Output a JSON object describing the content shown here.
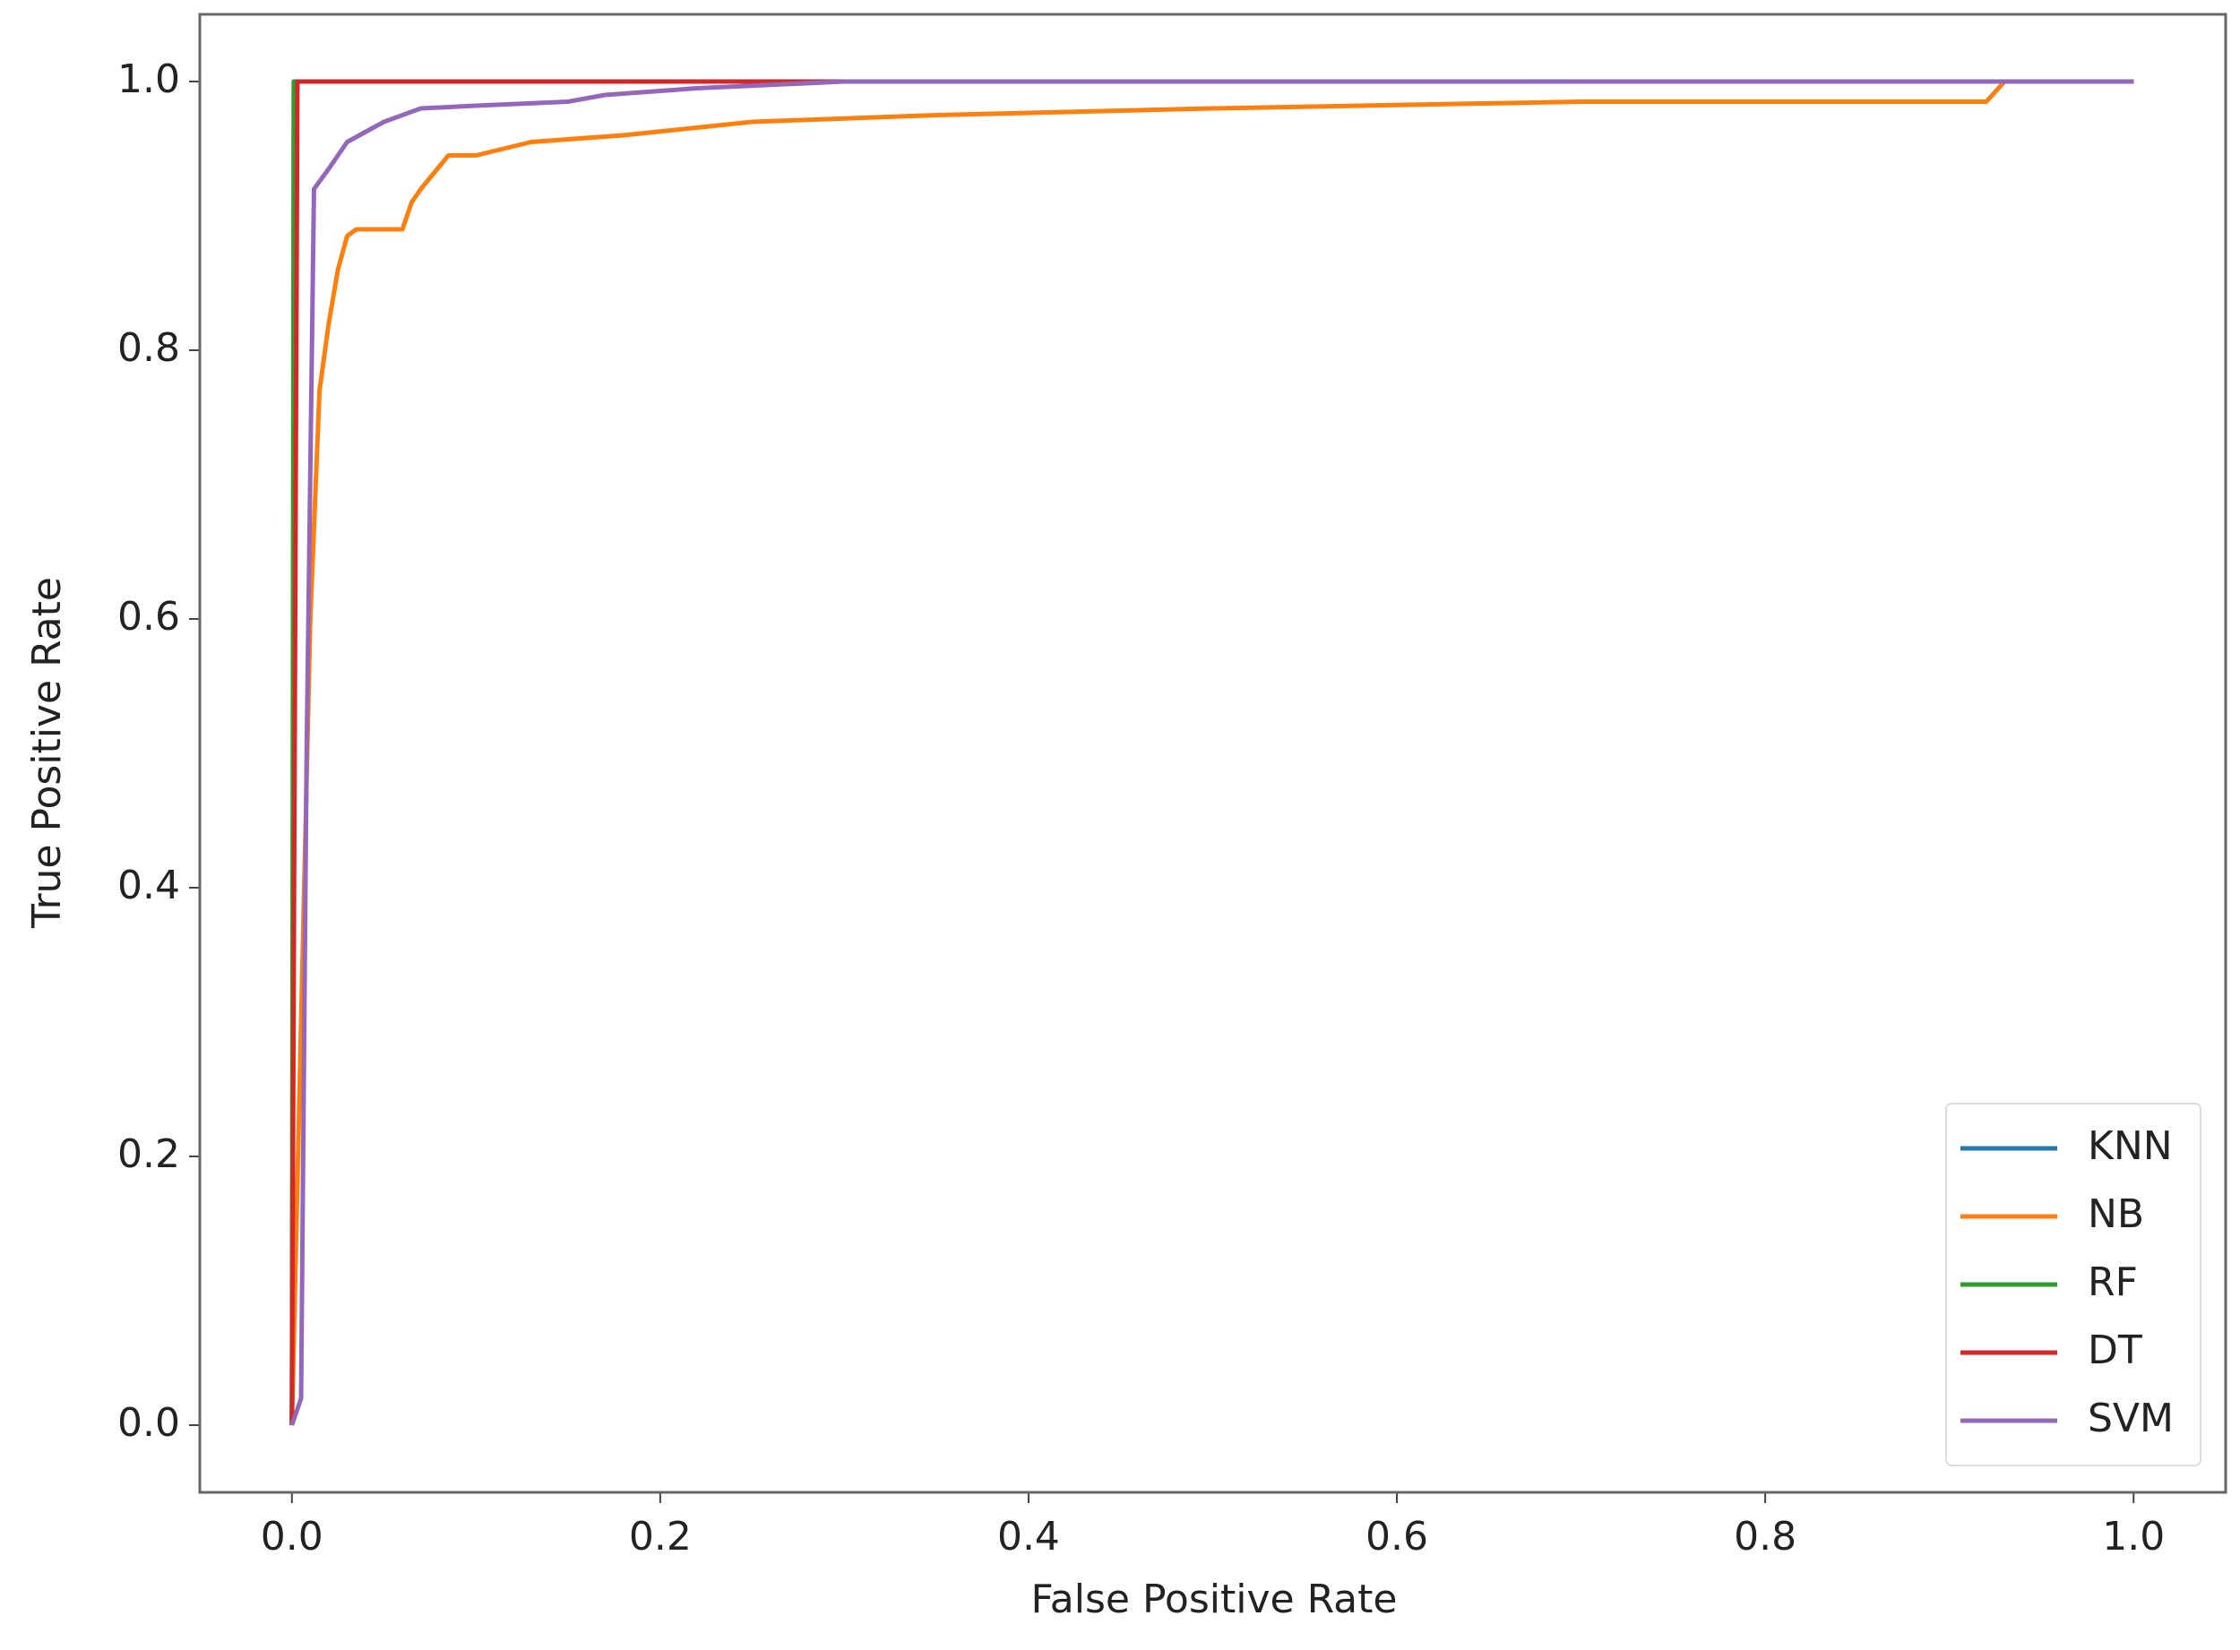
{
  "chart_data": {
    "type": "line",
    "xlabel": "False Positive Rate",
    "ylabel": "True Positive Rate",
    "xlim": [
      -0.05,
      1.05
    ],
    "ylim": [
      -0.05,
      1.05
    ],
    "xticks": [
      {
        "value": 0,
        "label": "0.0"
      },
      {
        "value": 0.2,
        "label": "0.2"
      },
      {
        "value": 0.4,
        "label": "0.4"
      },
      {
        "value": 0.6,
        "label": "0.6"
      },
      {
        "value": 0.8,
        "label": "0.8"
      },
      {
        "value": 1,
        "label": "1.0"
      }
    ],
    "yticks": [
      {
        "value": 0,
        "label": "0.0"
      },
      {
        "value": 0.2,
        "label": "0.2"
      },
      {
        "value": 0.4,
        "label": "0.4"
      },
      {
        "value": 0.6,
        "label": "0.6"
      },
      {
        "value": 0.8,
        "label": "0.8"
      },
      {
        "value": 1,
        "label": "1.0"
      }
    ],
    "grid": false,
    "legend": "lower right",
    "series": [
      {
        "name": "KNN",
        "color": "#1f77b4",
        "x": [
          0,
          0.002,
          1
        ],
        "values": [
          0,
          1,
          1
        ]
      },
      {
        "name": "NB",
        "color": "#ff7f0e",
        "x": [
          0,
          0.005,
          0.01,
          0.015,
          0.02,
          0.025,
          0.03,
          0.035,
          0.06,
          0.065,
          0.07,
          0.085,
          0.1,
          0.13,
          0.18,
          0.25,
          0.35,
          0.5,
          0.7,
          0.92,
          0.93,
          1
        ],
        "values": [
          0,
          0.3,
          0.6,
          0.77,
          0.82,
          0.86,
          0.885,
          0.89,
          0.89,
          0.91,
          0.92,
          0.945,
          0.945,
          0.955,
          0.96,
          0.97,
          0.975,
          0.98,
          0.985,
          0.985,
          1,
          1
        ]
      },
      {
        "name": "RF",
        "color": "#2ca02c",
        "x": [
          0,
          0.001,
          1
        ],
        "values": [
          0,
          1,
          1
        ]
      },
      {
        "name": "DT",
        "color": "#d62728",
        "x": [
          0,
          0.003,
          1
        ],
        "values": [
          0,
          1,
          1
        ]
      },
      {
        "name": "SVM",
        "color": "#9467bd",
        "x": [
          0,
          0.005,
          0.008,
          0.012,
          0.02,
          0.03,
          0.05,
          0.07,
          0.1,
          0.15,
          0.17,
          0.22,
          0.3,
          1
        ],
        "values": [
          0,
          0.02,
          0.5,
          0.92,
          0.935,
          0.955,
          0.97,
          0.98,
          0.982,
          0.985,
          0.99,
          0.995,
          1,
          1
        ]
      }
    ]
  }
}
